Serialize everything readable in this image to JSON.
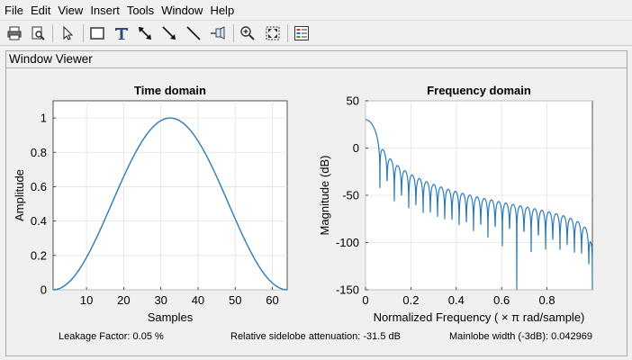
{
  "menu": [
    "File",
    "Edit",
    "View",
    "Insert",
    "Tools",
    "Window",
    "Help"
  ],
  "toolbar_icons": [
    "print-icon",
    "print-preview-icon",
    "pointer-icon",
    "rectangle-icon",
    "text-icon",
    "double-arrow-icon",
    "arrow-icon",
    "line-icon",
    "pin-icon",
    "zoom-in-icon",
    "fit-icon",
    "legend-icon"
  ],
  "panel": {
    "title": "Window Viewer"
  },
  "stats": {
    "leakage": "Leakage Factor: 0.05 %",
    "sidelobe": "Relative sidelobe attenuation: -31.5 dB",
    "mainlobe": "Mainlobe width (-3dB): 0.042969"
  },
  "colors": {
    "line": "#2b7bba",
    "grid": "#e2e2e2"
  },
  "chart_data": [
    {
      "type": "line",
      "title": "Time domain",
      "xlabel": "Samples",
      "ylabel": "Amplitude",
      "xlim": [
        1,
        64
      ],
      "ylim": [
        0,
        1.1
      ],
      "xticks": [
        10,
        20,
        30,
        40,
        50,
        60
      ],
      "yticks": [
        0,
        0.2,
        0.4,
        0.6,
        0.8,
        1
      ],
      "ytick_labels": [
        "0",
        "0.2",
        "0.4",
        "0.6",
        "0.8",
        "1"
      ],
      "grid": true,
      "series": [
        {
          "x": [
            1,
            3,
            5,
            7,
            9,
            11,
            13,
            15,
            17,
            19,
            21,
            23,
            25,
            27,
            29,
            31,
            32,
            33,
            35,
            37,
            39,
            41,
            43,
            45,
            47,
            49,
            51,
            53,
            55,
            57,
            59,
            61,
            63,
            64
          ],
          "y": [
            0,
            0.01,
            0.04,
            0.08,
            0.14,
            0.21,
            0.28,
            0.37,
            0.46,
            0.55,
            0.64,
            0.73,
            0.81,
            0.88,
            0.94,
            0.98,
            0.995,
            1,
            0.99,
            0.96,
            0.91,
            0.84,
            0.77,
            0.68,
            0.59,
            0.5,
            0.41,
            0.32,
            0.24,
            0.17,
            0.11,
            0.06,
            0.02,
            0
          ]
        }
      ]
    },
    {
      "type": "line",
      "title": "Frequency domain",
      "xlabel": "Normalized Frequency  ( × π rad/sample)",
      "ylabel": "Magnitude (dB)",
      "xlim": [
        0,
        1
      ],
      "ylim": [
        -150,
        50
      ],
      "xticks": [
        0,
        0.2,
        0.4,
        0.6,
        0.8
      ],
      "xtick_labels": [
        "0",
        "0.2",
        "0.4",
        "0.6",
        "0.8"
      ],
      "yticks": [
        -150,
        -100,
        -50,
        0,
        50
      ],
      "grid": true,
      "series": [
        {
          "x": [
            0,
            0.01,
            0.02,
            0.03,
            0.04,
            0.05,
            0.07,
            0.1,
            0.15,
            0.2,
            0.3,
            0.4,
            0.5,
            0.6,
            0.7,
            0.8,
            0.9,
            0.95,
            1.0
          ],
          "y": [
            30,
            29,
            26,
            20,
            10,
            -4,
            -10,
            -18,
            -28,
            -35,
            -44,
            -50,
            -55,
            -60,
            -65,
            -71,
            -79,
            -88,
            -95
          ]
        }
      ]
    }
  ]
}
